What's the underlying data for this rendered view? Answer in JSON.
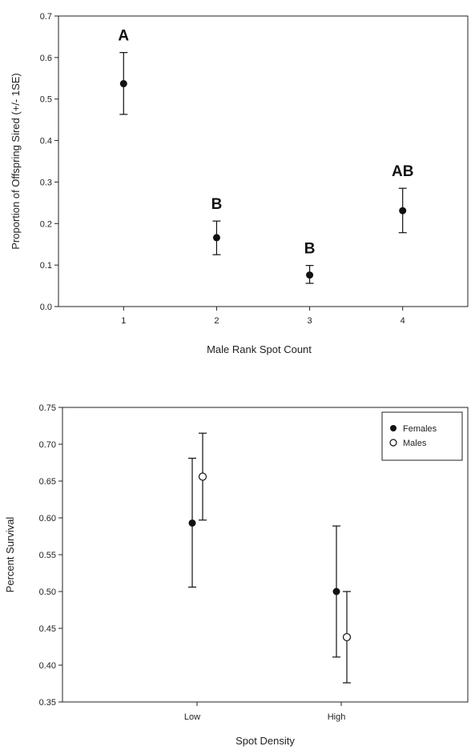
{
  "chart_data": [
    {
      "type": "scatter",
      "title": "",
      "xlabel": "Male Rank Spot Count",
      "ylabel": "Proportion of Offspring Sired (+/- 1SE)",
      "xlim": [
        0.3,
        4.7
      ],
      "ylim": [
        0.0,
        0.7
      ],
      "x_ticks": [
        1,
        2,
        3,
        4
      ],
      "x_tick_labels": [
        "1",
        "2",
        "3",
        "4"
      ],
      "y_ticks": [
        0.0,
        0.1,
        0.2,
        0.3,
        0.4,
        0.5,
        0.6,
        0.7
      ],
      "y_tick_labels": [
        "0.0",
        "0.1",
        "0.2",
        "0.3",
        "0.4",
        "0.5",
        "0.6",
        "0.7"
      ],
      "grid": false,
      "series": [
        {
          "marker": "filled-circle",
          "points": [
            {
              "x": 1,
              "y": 0.537,
              "err_low": 0.463,
              "err_high": 0.612,
              "label": "A"
            },
            {
              "x": 2,
              "y": 0.166,
              "err_low": 0.125,
              "err_high": 0.206,
              "label": "B"
            },
            {
              "x": 3,
              "y": 0.076,
              "err_low": 0.056,
              "err_high": 0.099,
              "label": "B"
            },
            {
              "x": 4,
              "y": 0.231,
              "err_low": 0.178,
              "err_high": 0.285,
              "label": "AB"
            }
          ]
        }
      ]
    },
    {
      "type": "scatter",
      "title": "",
      "xlabel": "Spot Density",
      "ylabel": "Percent Survival",
      "categories": [
        "Low",
        "High"
      ],
      "ylim": [
        0.35,
        0.75
      ],
      "y_ticks": [
        0.35,
        0.4,
        0.45,
        0.5,
        0.55,
        0.6,
        0.65,
        0.7,
        0.75
      ],
      "y_tick_labels": [
        "0.35",
        "0.40",
        "0.45",
        "0.50",
        "0.55",
        "0.60",
        "0.65",
        "0.70",
        "0.75"
      ],
      "grid": false,
      "legend": {
        "position": "top-right",
        "entries": [
          "Females",
          "Males"
        ]
      },
      "series": [
        {
          "name": "Females",
          "marker": "filled-circle",
          "values": [
            0.593,
            0.5
          ],
          "err_low": [
            0.506,
            0.411
          ],
          "err_high": [
            0.681,
            0.589
          ]
        },
        {
          "name": "Males",
          "marker": "open-circle",
          "values": [
            0.656,
            0.438
          ],
          "err_low": [
            0.597,
            0.376
          ],
          "err_high": [
            0.715,
            0.5
          ]
        }
      ]
    }
  ]
}
